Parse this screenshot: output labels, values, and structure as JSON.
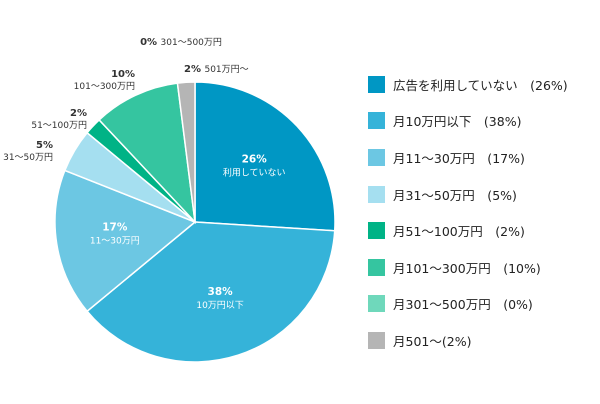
{
  "chart_data": {
    "type": "pie",
    "slices": [
      {
        "key": "s0",
        "legend": "広告を利用していない　(26%)",
        "value": 26,
        "color": "#0097c4",
        "label_pct": "26%",
        "label_name": "利用していない",
        "label_inside": true,
        "label_color": "#ffffff"
      },
      {
        "key": "s1",
        "legend": "月10万円以下　(38%)",
        "value": 38,
        "color": "#35b3d9",
        "label_pct": "38%",
        "label_name": "10万円以下",
        "label_inside": true,
        "label_color": "#ffffff"
      },
      {
        "key": "s2",
        "legend": "月11〜30万円　(17%)",
        "value": 17,
        "color": "#6cc7e3",
        "label_pct": "17%",
        "label_name": "11〜30万円",
        "label_inside": true,
        "label_color": "#ffffff"
      },
      {
        "key": "s3",
        "legend": "月31〜50万円　(5%)",
        "value": 5,
        "color": "#a5dff0",
        "label_pct": "5%",
        "label_name": "31〜50万円",
        "label_inside": false,
        "label_color": "#333333"
      },
      {
        "key": "s4",
        "legend": "月51〜100万円　(2%)",
        "value": 2,
        "color": "#00b386",
        "label_pct": "2%",
        "label_name": "51〜100万円",
        "label_inside": false,
        "label_color": "#333333"
      },
      {
        "key": "s5",
        "legend": "月101〜300万円　(10%)",
        "value": 10,
        "color": "#35c5a0",
        "label_pct": "10%",
        "label_name": "101〜300万円",
        "label_inside": false,
        "label_color": "#333333"
      },
      {
        "key": "s6",
        "legend": "月301〜500万円　(0%)",
        "value": 0,
        "color": "#6fd8bb",
        "label_pct": "0%",
        "label_name": "301〜500万円",
        "label_inside": false,
        "label_color": "#333333"
      },
      {
        "key": "s7",
        "legend": "月501〜(2%)",
        "value": 2,
        "color": "#b5b5b5",
        "label_pct": "2%",
        "label_name": "501万円〜",
        "label_inside": false,
        "label_color": "#333333"
      }
    ],
    "start_angle_deg": 0,
    "direction": "clockwise",
    "legend_position": "right"
  }
}
